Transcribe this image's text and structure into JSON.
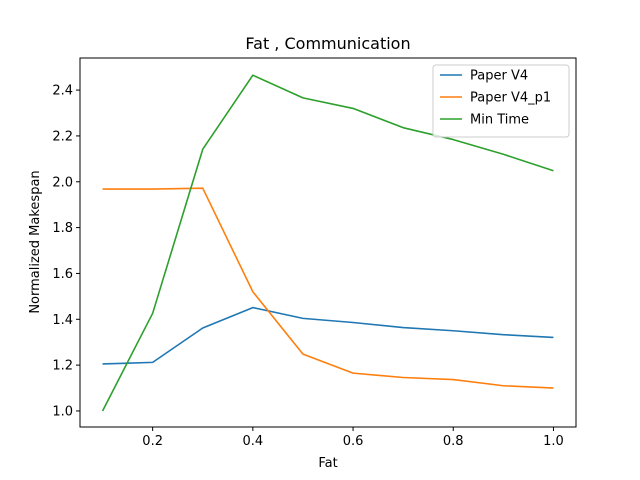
{
  "chart_data": {
    "type": "line",
    "title": "Fat , Communication",
    "xlabel": "Fat",
    "ylabel": "Normalized Makespan",
    "x": [
      0.1,
      0.2,
      0.3,
      0.4,
      0.5,
      0.6,
      0.7,
      0.8,
      0.9,
      1.0
    ],
    "xlim": [
      0.055,
      1.045
    ],
    "ylim": [
      0.93,
      2.54
    ],
    "xticks": [
      0.2,
      0.4,
      0.6,
      0.8,
      1.0
    ],
    "xtick_labels": [
      "0.2",
      "0.4",
      "0.6",
      "0.8",
      "1.0"
    ],
    "yticks": [
      1.0,
      1.2,
      1.4,
      1.6,
      1.8,
      2.0,
      2.2,
      2.4
    ],
    "ytick_labels": [
      "1.0",
      "1.2",
      "1.4",
      "1.6",
      "1.8",
      "2.0",
      "2.2",
      "2.4"
    ],
    "grid": false,
    "legend_position": "top-right",
    "series": [
      {
        "name": "Paper V4",
        "color": "#1f77b4",
        "values": [
          1.205,
          1.212,
          1.362,
          1.451,
          1.404,
          1.386,
          1.364,
          1.35,
          1.333,
          1.321
        ]
      },
      {
        "name": "Paper V4_p1",
        "color": "#ff7f0e",
        "values": [
          1.968,
          1.968,
          1.972,
          1.52,
          1.248,
          1.165,
          1.146,
          1.137,
          1.11,
          1.1
        ]
      },
      {
        "name": "Min Time",
        "color": "#2ca02c",
        "values": [
          1.0,
          1.426,
          2.142,
          2.465,
          2.366,
          2.32,
          2.236,
          2.184,
          2.12,
          2.048
        ]
      }
    ]
  }
}
